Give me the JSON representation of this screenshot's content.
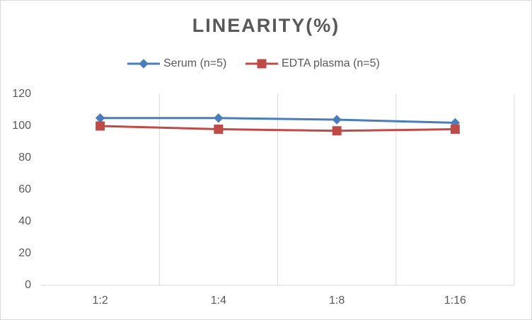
{
  "chart_data": {
    "type": "line",
    "title": "LINEARITY(%)",
    "categories": [
      "1:2",
      "1:4",
      "1:8",
      "1:16"
    ],
    "series": [
      {
        "name": "Serum (n=5)",
        "color": "#4a7ebb",
        "marker": "diamond",
        "values": [
          105,
          105,
          104,
          102
        ]
      },
      {
        "name": "EDTA plasma (n=5)",
        "color": "#be4b48",
        "marker": "square",
        "values": [
          100,
          98,
          97,
          98
        ]
      }
    ],
    "ylim": [
      0,
      120
    ],
    "yticks": [
      0,
      20,
      40,
      60,
      80,
      100,
      120
    ],
    "grid": "x",
    "legend": "top"
  }
}
